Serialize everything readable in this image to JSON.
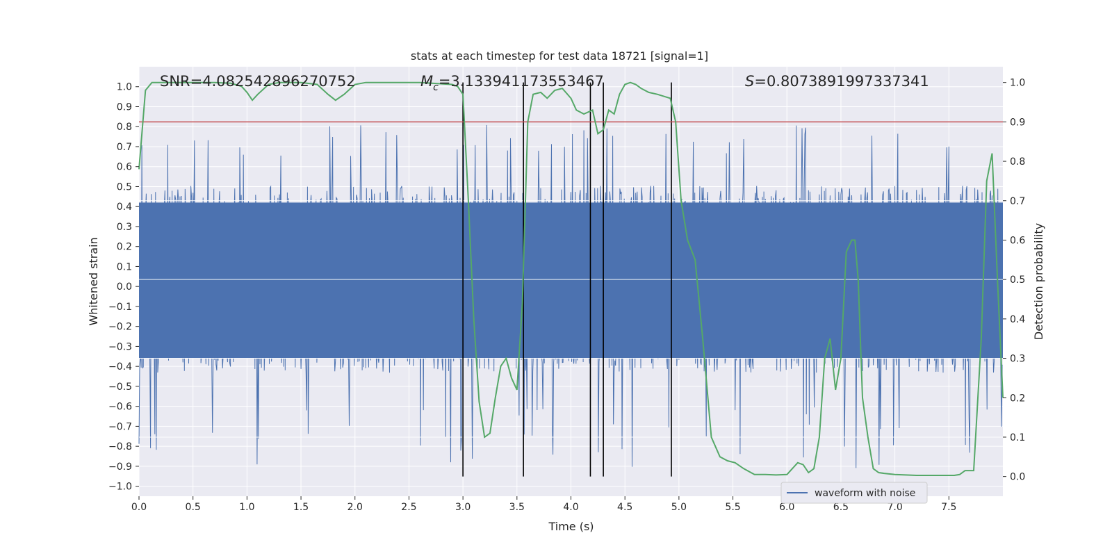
{
  "chart_data": {
    "type": "line",
    "title": "stats at each timestep for test data 18721 [signal=1]",
    "xlabel": "Time (s)",
    "ylabel": "Whitened strain",
    "y2label": "Detection probability",
    "xlim": [
      0,
      8
    ],
    "ylim": [
      -1.05,
      1.1
    ],
    "y2lim": [
      -0.05,
      1.04
    ],
    "xticks": [
      "0.0",
      "0.5",
      "1.0",
      "1.5",
      "2.0",
      "2.5",
      "3.0",
      "3.5",
      "4.0",
      "4.5",
      "5.0",
      "5.5",
      "6.0",
      "6.5",
      "7.0",
      "7.5"
    ],
    "yticks": [
      "−1.0",
      "−0.9",
      "−0.8",
      "−0.7",
      "−0.6",
      "−0.5",
      "−0.4",
      "−0.3",
      "−0.2",
      "−0.1",
      "0.0",
      "0.1",
      "0.2",
      "0.3",
      "0.4",
      "0.5",
      "0.6",
      "0.7",
      "0.8",
      "0.9",
      "1.0"
    ],
    "y2ticks": [
      "0.0",
      "0.1",
      "0.2",
      "0.3",
      "0.4",
      "0.5",
      "0.6",
      "0.7",
      "0.8",
      "0.9",
      "1.0"
    ],
    "annotations": {
      "snr": "SNR=4.082542896270752",
      "mc_symbol": "M",
      "mc_sub": "c",
      "mc_value": "=3.133941173553467",
      "s_symbol": "S",
      "s_value": "=0.8073891997337341"
    },
    "threshold": {
      "y2": 0.9,
      "color": "#c44e52"
    },
    "event_markers_x": [
      3.0,
      3.56,
      4.18,
      4.3,
      4.93
    ],
    "waveform": {
      "name": "waveform with noise",
      "color": "#4c72b0",
      "samples": 1200,
      "core_band": [
        -0.36,
        0.42
      ],
      "typical_peak": [
        -0.6,
        0.65
      ],
      "max_peak": 0.82,
      "min_peak": -0.93
    },
    "probability": {
      "color": "#55a868",
      "x": [
        0.0,
        0.06,
        0.12,
        0.2,
        0.3,
        0.5,
        0.7,
        0.85,
        0.95,
        1.0,
        1.05,
        1.1,
        1.2,
        1.3,
        1.5,
        1.65,
        1.75,
        1.82,
        1.9,
        2.0,
        2.1,
        2.3,
        2.6,
        2.9,
        2.95,
        3.0,
        3.05,
        3.1,
        3.15,
        3.2,
        3.25,
        3.3,
        3.35,
        3.4,
        3.45,
        3.5,
        3.55,
        3.6,
        3.65,
        3.72,
        3.78,
        3.85,
        3.92,
        4.0,
        4.05,
        4.12,
        4.2,
        4.25,
        4.3,
        4.35,
        4.4,
        4.45,
        4.5,
        4.55,
        4.6,
        4.65,
        4.72,
        4.8,
        4.92,
        4.97,
        5.02,
        5.08,
        5.15,
        5.22,
        5.3,
        5.38,
        5.45,
        5.52,
        5.6,
        5.7,
        5.8,
        5.9,
        6.0,
        6.05,
        6.1,
        6.15,
        6.2,
        6.25,
        6.3,
        6.35,
        6.4,
        6.45,
        6.5,
        6.55,
        6.6,
        6.63,
        6.66,
        6.7,
        6.75,
        6.8,
        6.85,
        6.9,
        7.0,
        7.2,
        7.4,
        7.55,
        7.6,
        7.65,
        7.73,
        7.8,
        7.85,
        7.9,
        7.95,
        8.0
      ],
      "y": [
        0.78,
        0.98,
        1.0,
        1.0,
        1.0,
        1.0,
        1.0,
        0.998,
        0.99,
        0.975,
        0.955,
        0.97,
        0.995,
        1.0,
        1.0,
        0.995,
        0.97,
        0.955,
        0.97,
        0.995,
        1.0,
        1.0,
        1.0,
        0.995,
        0.99,
        0.97,
        0.7,
        0.4,
        0.19,
        0.1,
        0.11,
        0.2,
        0.28,
        0.3,
        0.25,
        0.22,
        0.44,
        0.9,
        0.97,
        0.975,
        0.96,
        0.98,
        0.985,
        0.96,
        0.93,
        0.92,
        0.93,
        0.87,
        0.88,
        0.93,
        0.92,
        0.97,
        0.995,
        1.0,
        0.995,
        0.985,
        0.975,
        0.97,
        0.96,
        0.9,
        0.7,
        0.6,
        0.55,
        0.35,
        0.1,
        0.05,
        0.04,
        0.035,
        0.02,
        0.005,
        0.005,
        0.004,
        0.005,
        0.02,
        0.035,
        0.03,
        0.01,
        0.02,
        0.1,
        0.3,
        0.35,
        0.22,
        0.3,
        0.57,
        0.6,
        0.6,
        0.5,
        0.2,
        0.1,
        0.02,
        0.01,
        0.008,
        0.005,
        0.003,
        0.003,
        0.003,
        0.005,
        0.015,
        0.015,
        0.35,
        0.75,
        0.82,
        0.5,
        0.2
      ]
    },
    "legend": {
      "position": "bottom-right",
      "entries": [
        "waveform with noise"
      ]
    }
  }
}
